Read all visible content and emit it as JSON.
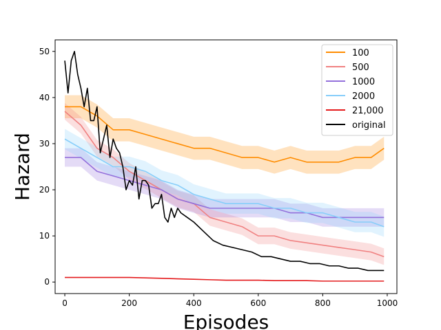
{
  "chart_data": {
    "type": "line",
    "title": "",
    "xlabel": "Episodes",
    "ylabel": "Hazard",
    "xlim": [
      -30,
      1030
    ],
    "ylim": [
      -2.5,
      52.5
    ],
    "xticks": [
      0,
      200,
      400,
      600,
      800,
      1000
    ],
    "yticks": [
      0,
      10,
      20,
      30,
      40,
      50
    ],
    "grid": false,
    "legend_position": "top-right",
    "x": [
      0,
      50,
      100,
      150,
      200,
      250,
      300,
      350,
      400,
      450,
      500,
      550,
      600,
      650,
      700,
      750,
      800,
      850,
      900,
      950,
      990
    ],
    "series": [
      {
        "name": "100",
        "color": "#ff8c00",
        "values": [
          38,
          38,
          36,
          33,
          33,
          32,
          31,
          30,
          29,
          29,
          28,
          27,
          27,
          26,
          27,
          26,
          26,
          26,
          27,
          27,
          29
        ],
        "band": 2.5
      },
      {
        "name": "500",
        "color": "#f08080",
        "values": [
          37,
          34,
          29,
          27,
          24,
          22,
          20,
          18,
          17,
          14,
          13,
          12,
          10,
          10,
          9,
          8.5,
          8,
          7.5,
          7,
          6.5,
          5.5
        ],
        "band": 1.8
      },
      {
        "name": "1000",
        "color": "#9370db",
        "values": [
          27,
          27,
          24,
          23,
          22,
          21,
          20,
          18,
          17,
          16,
          16,
          16,
          16,
          16,
          15,
          15,
          14,
          14,
          14,
          14,
          14
        ],
        "band": 2.0
      },
      {
        "name": "2000",
        "color": "#87cefa",
        "values": [
          31,
          29,
          27,
          25,
          25,
          24,
          22,
          21,
          19,
          18,
          17,
          17,
          17,
          16,
          16,
          15,
          15,
          14,
          13,
          13,
          12
        ],
        "band": 2.2
      },
      {
        "name": "21,000",
        "color": "#e41a1c",
        "values": [
          1.0,
          1.0,
          1.0,
          1.0,
          1.0,
          0.9,
          0.8,
          0.7,
          0.6,
          0.5,
          0.4,
          0.4,
          0.4,
          0.3,
          0.3,
          0.3,
          0.2,
          0.2,
          0.2,
          0.2,
          0.2
        ],
        "band": 0
      },
      {
        "name": "original",
        "color": "#000000",
        "x": [
          0,
          10,
          20,
          30,
          40,
          50,
          60,
          70,
          80,
          90,
          100,
          110,
          120,
          130,
          140,
          150,
          160,
          170,
          180,
          190,
          200,
          210,
          220,
          230,
          240,
          250,
          260,
          270,
          280,
          290,
          300,
          310,
          320,
          330,
          340,
          350,
          360,
          380,
          400,
          430,
          460,
          490,
          520,
          550,
          580,
          610,
          640,
          670,
          700,
          730,
          760,
          790,
          820,
          850,
          880,
          910,
          940,
          970,
          990
        ],
        "values": [
          48,
          41,
          48,
          50,
          45,
          42,
          38,
          42,
          35,
          35,
          38,
          28,
          31,
          34,
          27,
          31,
          29,
          28,
          25,
          20,
          22,
          21,
          25,
          18,
          22,
          22,
          21,
          16,
          17,
          17,
          19,
          14,
          13,
          16,
          14,
          16,
          15,
          14,
          13,
          11,
          9,
          8,
          7.5,
          7,
          6.5,
          5.5,
          5.5,
          5,
          4.5,
          4.5,
          4,
          4,
          3.5,
          3.5,
          3,
          3,
          2.5,
          2.5,
          2.5
        ],
        "band": 0
      }
    ],
    "legend": [
      "100",
      "500",
      "1000",
      "2000",
      "21,000",
      "original"
    ]
  }
}
